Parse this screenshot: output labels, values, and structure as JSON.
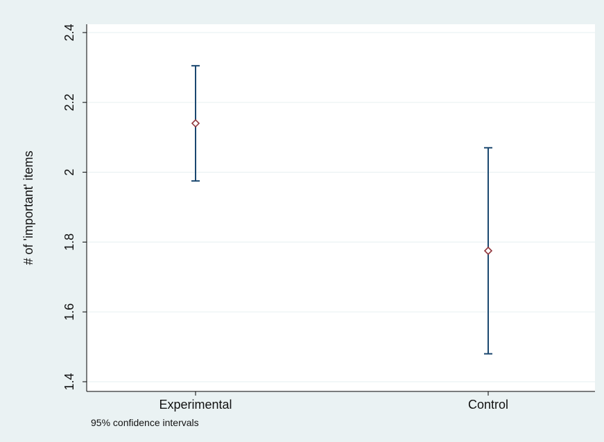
{
  "chart_data": {
    "type": "errorbar",
    "categories": [
      "Experimental",
      "Control"
    ],
    "series": [
      {
        "values": [
          2.14,
          1.775
        ],
        "lower": [
          1.975,
          1.48
        ],
        "upper": [
          2.305,
          2.07
        ]
      }
    ],
    "ylabel": "# of 'important' items",
    "xlabel": "",
    "ylim": [
      1.4,
      2.4
    ],
    "yticks": [
      "1.4",
      "1.6",
      "1.8",
      "2",
      "2.2",
      "2.4"
    ],
    "note": "95% confidence intervals",
    "grid": true,
    "colors": {
      "outer_background": "#eaf2f3",
      "plot_background": "#ffffff",
      "gridline": "#eaf2f3",
      "errorbar": "#1a476f",
      "marker": "#90353b",
      "axis": "#000000"
    }
  }
}
